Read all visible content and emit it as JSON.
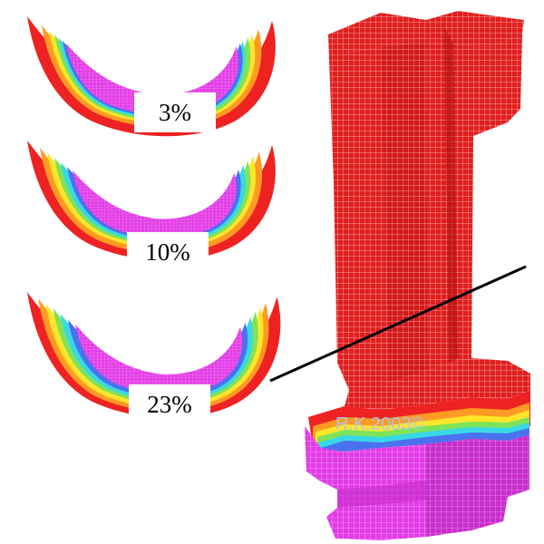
{
  "sections": [
    {
      "label": "3%"
    },
    {
      "label": "10%"
    },
    {
      "label": "23%"
    }
  ],
  "watermark": "R.K.2003©",
  "colors": {
    "skin": "#ee2222",
    "band_orange": "#ff9a22",
    "band_yellow": "#ffe62a",
    "band_green": "#7fe35a",
    "band_cyan": "#38d8e6",
    "band_blue": "#4a72ee",
    "core_magenta": "#e23ce6",
    "mesh_line": "#ffd4d4",
    "cut_line": "#000000",
    "label_bg": "#ffffff"
  }
}
